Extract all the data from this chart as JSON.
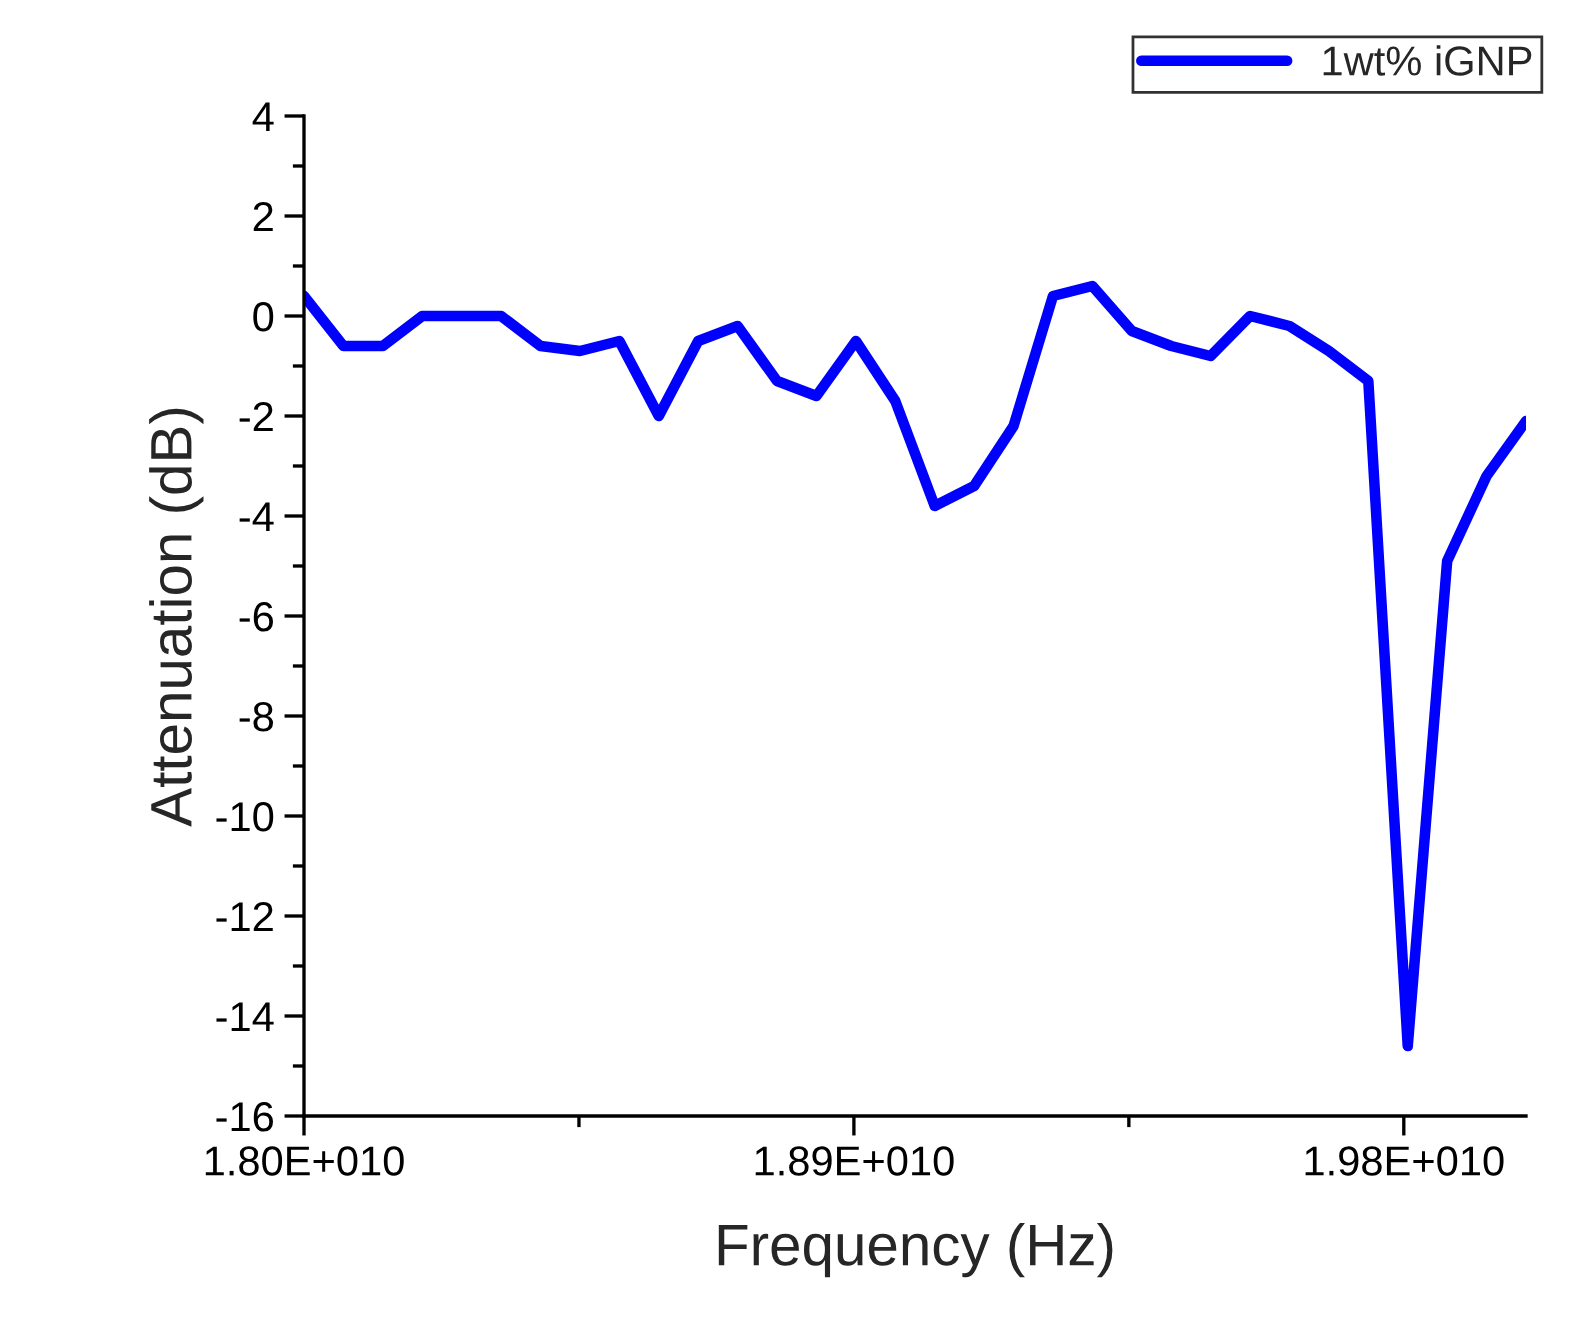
{
  "chart_data": {
    "type": "line",
    "xlabel": "Frequency (Hz)",
    "ylabel": "Attenuation (dB)",
    "x": [
      18000000000,
      18064516000,
      18129032000,
      18193548000,
      18258065000,
      18322581000,
      18387097000,
      18451613000,
      18516129000,
      18580645000,
      18645161000,
      18709677000,
      18774194000,
      18838710000,
      18903226000,
      18967742000,
      19032258000,
      19096774000,
      19161290000,
      19225806000,
      19290323000,
      19354839000,
      19419355000,
      19483871000,
      19548387000,
      19612903000,
      19677419000,
      19741935000,
      19806452000,
      19870968000,
      19935484000,
      20000000000
    ],
    "series": [
      {
        "name": "1wt% iGNP",
        "color": "#0000ff",
        "values": [
          0.4,
          -0.6,
          -0.6,
          0.0,
          0.0,
          0.0,
          -0.6,
          -0.7,
          -0.5,
          -2.0,
          -0.5,
          -0.2,
          -1.3,
          -1.6,
          -0.5,
          -1.7,
          -3.8,
          -3.4,
          -2.2,
          0.4,
          0.6,
          -0.3,
          -0.6,
          -0.8,
          0.0,
          -0.2,
          -0.7,
          -1.3,
          -14.6,
          -4.9,
          -3.2,
          -2.1
        ]
      }
    ],
    "xlim": [
      18000000000,
      20000000000
    ],
    "xticks": [
      {
        "value": 18000000000,
        "label": "1.80E+010"
      },
      {
        "value": 18450000000,
        "label": null
      },
      {
        "value": 18900000000,
        "label": "1.89E+010"
      },
      {
        "value": 19350000000,
        "label": null
      },
      {
        "value": 19800000000,
        "label": "1.98E+010"
      }
    ],
    "ylim": [
      -16,
      4
    ],
    "yticks": [
      -16,
      {
        "value": -15,
        "label": null
      },
      -14,
      {
        "value": -13,
        "label": null
      },
      -12,
      {
        "value": -11,
        "label": null
      },
      -10,
      {
        "value": -9,
        "label": null
      },
      -8,
      {
        "value": -7,
        "label": null
      },
      -6,
      {
        "value": -5,
        "label": null
      },
      -4,
      {
        "value": -3,
        "label": null
      },
      -2,
      {
        "value": -1,
        "label": null
      },
      0,
      {
        "value": 1,
        "label": null
      },
      2,
      {
        "value": 3,
        "label": null
      },
      4
    ],
    "grid": false,
    "legend": "top right",
    "line_style": "solid",
    "marker": "none"
  }
}
